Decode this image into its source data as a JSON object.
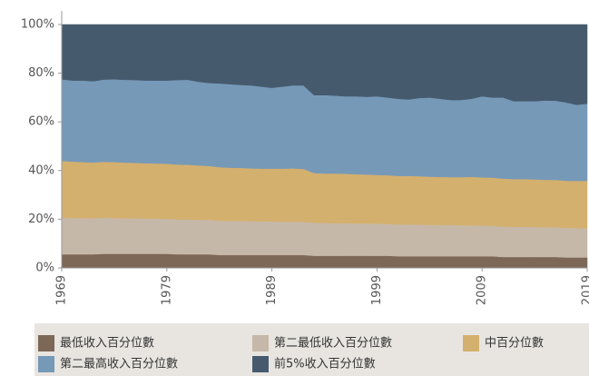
{
  "chart_data": {
    "type": "area",
    "x": [
      1969,
      1970,
      1971,
      1972,
      1973,
      1974,
      1975,
      1976,
      1977,
      1978,
      1979,
      1980,
      1981,
      1982,
      1983,
      1984,
      1985,
      1986,
      1987,
      1988,
      1989,
      1990,
      1991,
      1992,
      1993,
      1994,
      1995,
      1996,
      1997,
      1998,
      1999,
      2000,
      2001,
      2002,
      2003,
      2004,
      2005,
      2006,
      2007,
      2008,
      2009,
      2010,
      2011,
      2012,
      2013,
      2014,
      2015,
      2016,
      2017,
      2018,
      2019
    ],
    "series": [
      {
        "name": "最低收入百分位數",
        "color": "#7d6757",
        "values": [
          5.6,
          5.6,
          5.6,
          5.6,
          5.8,
          5.8,
          5.8,
          5.8,
          5.8,
          5.8,
          5.8,
          5.6,
          5.6,
          5.6,
          5.6,
          5.3,
          5.3,
          5.3,
          5.3,
          5.3,
          5.3,
          5.3,
          5.3,
          5.3,
          5.0,
          5.0,
          5.0,
          5.0,
          5.0,
          5.0,
          5.0,
          5.0,
          4.8,
          4.8,
          4.8,
          4.8,
          4.8,
          4.8,
          4.8,
          4.8,
          4.8,
          4.8,
          4.5,
          4.5,
          4.5,
          4.5,
          4.5,
          4.5,
          4.3,
          4.3,
          4.3
        ]
      },
      {
        "name": "第二最低收入百分位數",
        "color": "#c6b8a8",
        "values": [
          15.0,
          14.9,
          14.9,
          14.8,
          14.8,
          14.7,
          14.6,
          14.6,
          14.5,
          14.5,
          14.4,
          14.3,
          14.3,
          14.2,
          14.2,
          14.1,
          14.0,
          14.0,
          13.9,
          13.9,
          13.8,
          13.7,
          13.7,
          13.6,
          13.6,
          13.5,
          13.4,
          13.4,
          13.3,
          13.3,
          13.2,
          13.1,
          13.1,
          13.0,
          13.0,
          12.9,
          12.8,
          12.8,
          12.7,
          12.7,
          12.6,
          12.5,
          12.5,
          12.4,
          12.4,
          12.3,
          12.2,
          12.2,
          12.1,
          12.1,
          12.0
        ]
      },
      {
        "name": "中百分位數",
        "color": "#d4b06e",
        "values": [
          23.4,
          23.2,
          23.0,
          22.9,
          23.0,
          23.0,
          22.9,
          22.8,
          22.7,
          22.6,
          22.6,
          22.6,
          22.5,
          22.3,
          22.1,
          22.0,
          21.9,
          21.8,
          21.7,
          21.6,
          21.7,
          21.8,
          21.9,
          21.8,
          20.4,
          20.3,
          20.4,
          20.3,
          20.2,
          20.1,
          20.0,
          20.0,
          19.9,
          20.0,
          19.9,
          19.8,
          19.8,
          19.7,
          19.8,
          19.9,
          19.8,
          19.8,
          19.7,
          19.6,
          19.6,
          19.6,
          19.5,
          19.5,
          19.4,
          19.4,
          19.5
        ]
      },
      {
        "name": "第二最高收入百分位數",
        "color": "#7699b8",
        "values": [
          33.5,
          33.3,
          33.5,
          33.4,
          33.8,
          34.0,
          34.0,
          34.0,
          34.0,
          34.1,
          34.2,
          34.7,
          34.9,
          34.4,
          34.1,
          34.4,
          34.3,
          34.1,
          34.1,
          33.7,
          33.2,
          33.7,
          34.1,
          34.3,
          32.0,
          32.2,
          32.0,
          31.8,
          32.0,
          31.9,
          32.3,
          31.9,
          31.7,
          31.4,
          32.1,
          32.5,
          32.1,
          31.7,
          31.7,
          32.1,
          33.3,
          32.9,
          33.3,
          32.0,
          32.0,
          32.1,
          32.6,
          32.5,
          32.2,
          31.2,
          31.7
        ]
      },
      {
        "name": "前5%收入百分位數",
        "color": "#465a6e",
        "values": [
          22.5,
          23,
          23,
          23.3,
          22.6,
          22.5,
          22.7,
          22.8,
          23,
          23,
          23,
          22.8,
          22.7,
          23.5,
          24,
          24.2,
          24.5,
          24.8,
          25,
          25.5,
          26,
          25.5,
          25,
          25,
          29,
          29,
          29.2,
          29.5,
          29.5,
          29.7,
          29.5,
          30,
          30.5,
          30.8,
          30.2,
          30,
          30.5,
          31,
          31,
          30.5,
          29.5,
          30,
          30,
          31.5,
          31.5,
          31.5,
          31.2,
          31.3,
          32,
          33,
          32.5
        ]
      }
    ],
    "xlim": [
      1969,
      2019
    ],
    "xticks": [
      1969,
      1979,
      1989,
      1999,
      2009,
      2019
    ],
    "ylim": [
      0,
      100
    ],
    "yticks": [
      {
        "value": 0,
        "label": "0%"
      },
      {
        "value": 20,
        "label": "20%"
      },
      {
        "value": 40,
        "label": "40%"
      },
      {
        "value": 60,
        "label": "60%"
      },
      {
        "value": 80,
        "label": "80%"
      },
      {
        "value": 100,
        "label": "100%"
      }
    ],
    "stacked": true
  }
}
